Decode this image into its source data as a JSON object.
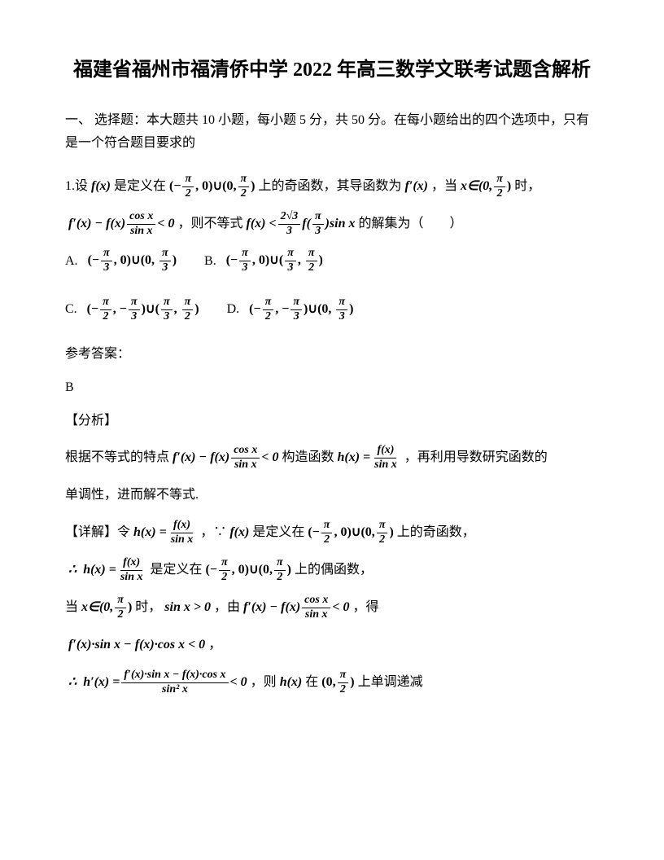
{
  "title": "福建省福州市福清侨中学 2022 年高三数学文联考试题含解析",
  "section_header": "一、 选择题：本大题共 10 小题，每小题 5 分，共 50 分。在每小题给出的四个选项中，只有是一个符合题目要求的",
  "question": {
    "number": "1.",
    "text1": "设 ",
    "fx": "f(x)",
    "text2": "是定义在",
    "domain1_a": "(−",
    "domain1_b": ", 0)∪(0,",
    "domain1_c": ")",
    "text3": "上的奇函数，其导函数为",
    "fprime": "f′(x)",
    "text4": "，当",
    "xin": "x∈(0,",
    "text5": "时，",
    "ineq_left": "f′(x) − f(x)",
    "ineq_right": "< 0",
    "text6": "，则不等式",
    "ineq2_a": "f(x) <",
    "ineq2_b": "f(",
    "ineq2_c": ")sin x",
    "text7": "的解集为（　　）",
    "pi": "π",
    "two": "2",
    "three": "3",
    "sqrt3": "√3",
    "cosx": "cos x",
    "sinx": "sin x"
  },
  "options": {
    "A": "A.",
    "B": "B.",
    "C": "C.",
    "D": "D."
  },
  "answer": {
    "header": "参考答案：",
    "letter": "B",
    "analysis_label": "【分析】",
    "analysis_text1": "根据不等式的特点",
    "analysis_text2": "构造函数",
    "hx_def": "h(x) =",
    "analysis_text3": "，再利用导数研究函数的",
    "analysis_text4": "单调性，进而解不等式.",
    "detail_label": "【详解】令",
    "detail_text1": "，∵",
    "detail_text2": "是定义在",
    "detail_text3": "上的奇函数，",
    "therefore": "∴",
    "detail_text4": "是定义在",
    "detail_text5": "上的偶函数，",
    "when": "当",
    "detail_text6": "时，",
    "sinx_gt0": "sin x > 0",
    "by": "，由",
    "get": "，得",
    "expr1": "f′(x)·sin x − f(x)·cos x < 0",
    "comma": "，",
    "hprime": "h′(x) =",
    "detail_text7": "，则",
    "hx": "h(x)",
    "detail_text8": "在",
    "detail_text9": "上单调递减",
    "sin2x": "sin² x",
    "lt0": "< 0"
  }
}
